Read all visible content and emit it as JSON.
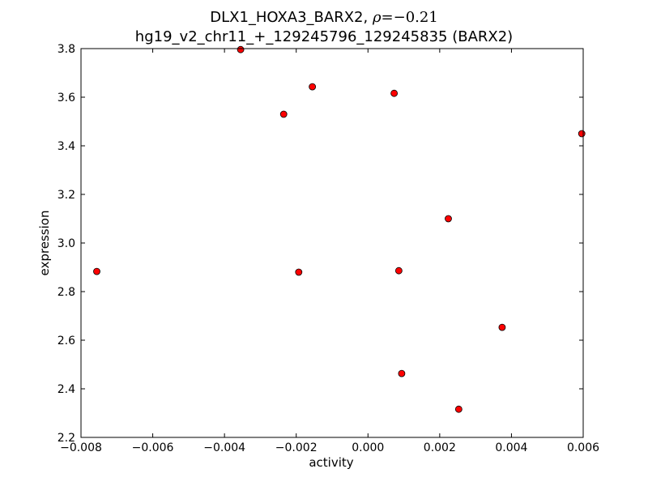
{
  "chart_data": {
    "type": "scatter",
    "title_line1_prefix": "DLX1_HOXA3_BARX2, ",
    "title_line1_rho_symbol": "ρ",
    "title_line1_rho_value": "=−0.21",
    "title_line2": "hg19_v2_chr11_+_129245796_129245835 (BARX2)",
    "xlabel": "activity",
    "ylabel": "expression",
    "xlim": [
      -0.008,
      0.006
    ],
    "ylim": [
      2.2,
      3.8
    ],
    "xticks": [
      -0.008,
      -0.006,
      -0.004,
      -0.002,
      0.0,
      0.002,
      0.004,
      0.006
    ],
    "xtick_labels": [
      "−0.008",
      "−0.006",
      "−0.004",
      "−0.002",
      "0.000",
      "0.002",
      "0.004",
      "0.006"
    ],
    "yticks": [
      2.2,
      2.4,
      2.6,
      2.8,
      3.0,
      3.2,
      3.4,
      3.6,
      3.8
    ],
    "ytick_labels": [
      "2.2",
      "2.4",
      "2.6",
      "2.8",
      "3.0",
      "3.2",
      "3.4",
      "3.6",
      "3.8"
    ],
    "grid": false,
    "marker_color": "#ff0000",
    "marker_edge": "#000000",
    "points": [
      {
        "x": -0.00756,
        "y": 2.883
      },
      {
        "x": -0.00355,
        "y": 3.796
      },
      {
        "x": -0.00235,
        "y": 3.53
      },
      {
        "x": -0.00193,
        "y": 2.88
      },
      {
        "x": -0.00155,
        "y": 3.643
      },
      {
        "x": 0.00073,
        "y": 3.616
      },
      {
        "x": 0.00086,
        "y": 2.886
      },
      {
        "x": 0.00094,
        "y": 2.463
      },
      {
        "x": 0.00224,
        "y": 3.1
      },
      {
        "x": 0.00253,
        "y": 2.316
      },
      {
        "x": 0.00374,
        "y": 2.653
      },
      {
        "x": 0.00596,
        "y": 3.45
      }
    ]
  }
}
